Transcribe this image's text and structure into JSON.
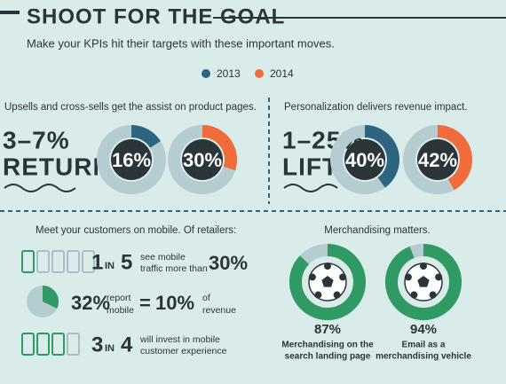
{
  "header": {
    "title": "SHOOT FOR THE GOAL",
    "subtitle": "Make your KPIs hit their targets with these important moves."
  },
  "legend": [
    {
      "name": "2013",
      "color": "#2d6480"
    },
    {
      "name": "2014",
      "color": "#f26b3a"
    }
  ],
  "upsells": {
    "heading": "Upsells and cross-sells get the assist on product pages.",
    "result": [
      "3–7%",
      "RETURN"
    ],
    "donuts": [
      {
        "value": 16,
        "label": "16%"
      },
      {
        "value": 30,
        "label": "30%"
      }
    ]
  },
  "personalization": {
    "heading": "Personalization delivers revenue impact.",
    "result": [
      "1–25%",
      "LIFT"
    ],
    "donuts": [
      {
        "value": 40,
        "label": "40%"
      },
      {
        "value": 42,
        "label": "42%"
      }
    ]
  },
  "mobile": {
    "heading": "Meet your customers on mobile. Of retailers:",
    "color": "#2f9a63",
    "stat1": {
      "numerator": 1,
      "word": "IN",
      "denominator": 5,
      "text": [
        "see mobile",
        "traffic more than"
      ],
      "value": {
        "value": 30,
        "label": "30%"
      }
    },
    "stat2": {
      "share": {
        "value": 32,
        "label": "32%"
      },
      "text": [
        "report",
        "mobile"
      ],
      "equals": "=",
      "revenue": {
        "value": 10,
        "label": "10%"
      },
      "tail": [
        "of",
        "revenue"
      ]
    },
    "stat3": {
      "numerator": 3,
      "word": "IN",
      "denominator": 4,
      "text": [
        "will invest in mobile",
        "customer experience"
      ]
    }
  },
  "merchandising": {
    "heading": "Merchandising matters.",
    "color": "#2f9a63",
    "items": [
      {
        "value": 87,
        "label": "87%",
        "caption": [
          "Merchandising on the",
          "search landing page"
        ]
      },
      {
        "value": 94,
        "label": "94%",
        "caption": [
          "Email as a",
          "merchandising vehicle"
        ]
      }
    ]
  }
}
